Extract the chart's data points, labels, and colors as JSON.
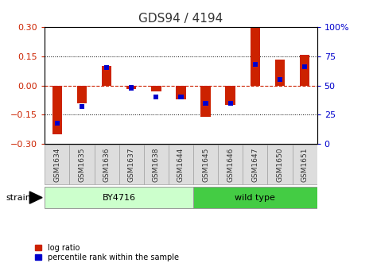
{
  "title": "GDS94 / 4194",
  "samples": [
    "GSM1634",
    "GSM1635",
    "GSM1636",
    "GSM1637",
    "GSM1638",
    "GSM1644",
    "GSM1645",
    "GSM1646",
    "GSM1647",
    "GSM1650",
    "GSM1651"
  ],
  "log_ratio": [
    -0.25,
    -0.09,
    0.1,
    -0.02,
    -0.03,
    -0.07,
    -0.16,
    -0.1,
    0.3,
    0.13,
    0.155
  ],
  "percentile": [
    18,
    32,
    65,
    48,
    40,
    40,
    35,
    35,
    68,
    55,
    66
  ],
  "ylim": [
    -0.3,
    0.3
  ],
  "yticks_left": [
    -0.3,
    -0.15,
    0,
    0.15,
    0.3
  ],
  "yticks_right": [
    0,
    25,
    50,
    75,
    100
  ],
  "bar_color_red": "#cc2200",
  "bar_color_blue": "#0000cc",
  "zero_line_color": "#cc2200",
  "grid_color": "#000000",
  "bg_color": "#ffffff",
  "plot_bg": "#ffffff",
  "strain_groups": [
    {
      "label": "BY4716",
      "start": 0,
      "end": 5,
      "color": "#ccffcc",
      "edgecolor": "#999999"
    },
    {
      "label": "wild type",
      "start": 6,
      "end": 10,
      "color": "#44cc44",
      "edgecolor": "#999999"
    }
  ],
  "strain_label": "strain",
  "legend_items": [
    {
      "label": "log ratio",
      "color": "#cc2200"
    },
    {
      "label": "percentile rank within the sample",
      "color": "#0000cc"
    }
  ],
  "left_tick_color": "#cc2200",
  "right_tick_color": "#0000cc",
  "bar_width": 0.4,
  "blue_bar_width": 0.2,
  "blue_bar_height": 0.025
}
